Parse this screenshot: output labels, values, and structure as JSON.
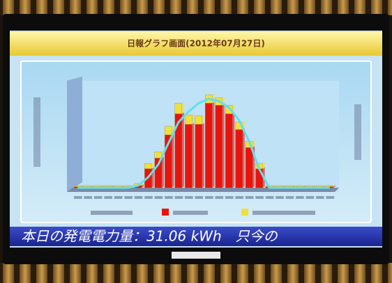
{
  "chart_data": {
    "type": "bar",
    "title": "日報グラフ画面(2012年07月27日)",
    "ticker": "本日の発電電力量：31.06 kWh　只今の",
    "categories": [
      null,
      null,
      null,
      null,
      null,
      null,
      null,
      null,
      null,
      null,
      null,
      null,
      null,
      null,
      null,
      null,
      null,
      null,
      null,
      null,
      null,
      null,
      null,
      null,
      null,
      null
    ],
    "series": [
      {
        "color": "#e8140c",
        "values": [
          1,
          1,
          1,
          1,
          1,
          1,
          2,
          18,
          28,
          50,
          70,
          60,
          60,
          80,
          78,
          70,
          55,
          38,
          18,
          1,
          1,
          1,
          1,
          1,
          1,
          1
        ]
      },
      {
        "color": "#f2df3a",
        "values": [
          1,
          1,
          1,
          1,
          1,
          1,
          2,
          5,
          6,
          8,
          10,
          9,
          8,
          8,
          7,
          8,
          7,
          6,
          5,
          1,
          1,
          1,
          1,
          1,
          1,
          1
        ]
      },
      {
        "type": "line",
        "color": "#5fe0ec",
        "values": [
          0,
          0,
          0,
          0,
          0,
          0,
          2,
          10,
          22,
          42,
          62,
          72,
          80,
          84,
          82,
          76,
          64,
          44,
          18,
          0,
          0,
          0,
          0,
          0,
          0,
          0
        ]
      }
    ],
    "ylim": [
      0,
      100
    ]
  }
}
